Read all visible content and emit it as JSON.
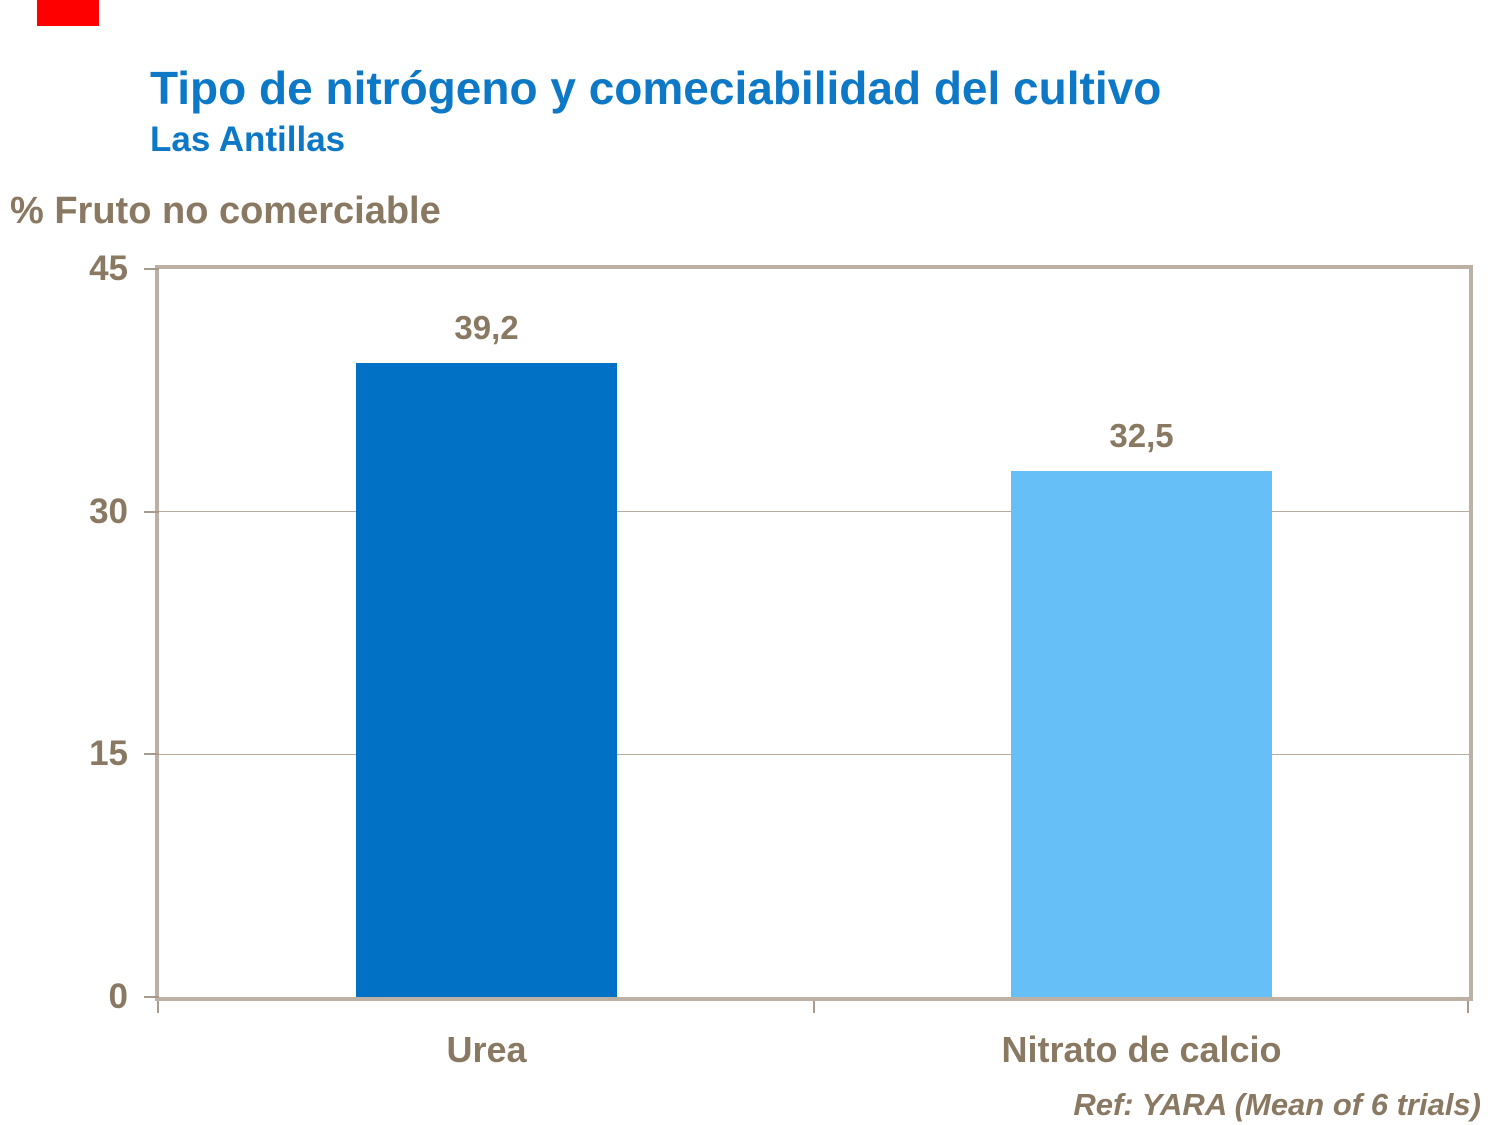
{
  "header": {
    "title": "Tipo de nitrógeno y comeciabilidad del cultivo",
    "subtitle": "Las Antillas"
  },
  "footer": {
    "reference": "Ref: YARA (Mean of 6 trials)"
  },
  "colors": {
    "title_blue": "#0D78C6",
    "text_brown": "#8A7962",
    "bar_urea": "#0071C4",
    "bar_nitrato_de_calcio": "#66BFF7",
    "plot_border": "#BCB1A4",
    "gridline": "#B8AC9E",
    "red_block": "#FF0000"
  },
  "chart_data": {
    "type": "bar",
    "title": "Tipo de nitrógeno y comeciabilidad del cultivo",
    "subtitle": "Las Antillas",
    "categories": [
      "Urea",
      "Nitrato de calcio"
    ],
    "values": [
      39.2,
      32.5
    ],
    "value_labels": [
      "39,2",
      "32,5"
    ],
    "bar_colors": [
      "#0071C4",
      "#66BFF7"
    ],
    "ylabel": "% Fruto no comerciable",
    "xlabel": "",
    "ylim": [
      0,
      45
    ],
    "yticks": [
      45,
      30,
      15,
      0
    ],
    "gridlines": [
      15,
      30
    ],
    "grid": "horizontal",
    "legend": "none",
    "annotation": "Ref: YARA (Mean of 6 trials)"
  }
}
